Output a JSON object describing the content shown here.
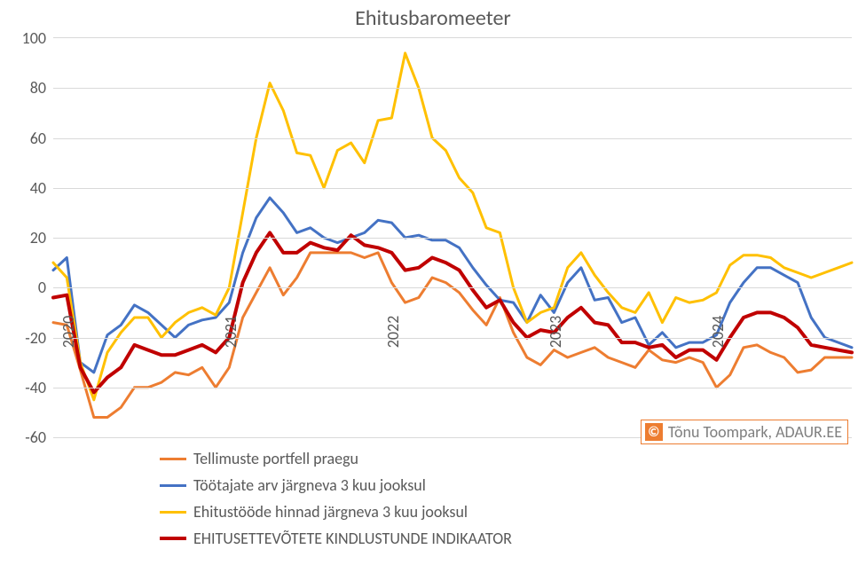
{
  "chart": {
    "type": "line",
    "title": "Ehitusbaromeeter",
    "title_fontsize": 24,
    "label_fontsize": 18,
    "background_color": "#ffffff",
    "grid_color": "#d9d9d9",
    "text_color": "#595959",
    "ylim": [
      -60,
      100
    ],
    "ytick_step": 20,
    "yticks": [
      -60,
      -40,
      -20,
      0,
      20,
      40,
      60,
      80,
      100
    ],
    "x_count": 60,
    "x_year_labels": [
      {
        "index": 0,
        "label": "2020"
      },
      {
        "index": 12,
        "label": "2021"
      },
      {
        "index": 24,
        "label": "2022"
      },
      {
        "index": 36,
        "label": "2023"
      },
      {
        "index": 48,
        "label": "2024"
      }
    ],
    "series": [
      {
        "name": "Tellimuste portfell praegu",
        "color": "#ed7d31",
        "line_width": 3,
        "values": [
          -14,
          -15,
          -33,
          -52,
          -52,
          -48,
          -40,
          -40,
          -38,
          -34,
          -35,
          -32,
          -40,
          -32,
          -12,
          -2,
          8,
          -3,
          4,
          14,
          14,
          14,
          14,
          12,
          14,
          2,
          -6,
          -4,
          4,
          2,
          -2,
          -9,
          -15,
          -4,
          -18,
          -28,
          -31,
          -25,
          -28,
          -26,
          -24,
          -28,
          -30,
          -32,
          -25,
          -29,
          -30,
          -28,
          -30,
          -40,
          -35,
          -24,
          -23,
          -26,
          -28,
          -34,
          -33,
          -28,
          -28,
          -28
        ]
      },
      {
        "name": "Töötajate arv järgneva 3 kuu jooksul",
        "color": "#4472c4",
        "line_width": 3,
        "values": [
          7,
          12,
          -30,
          -34,
          -19,
          -15,
          -7,
          -10,
          -15,
          -20,
          -15,
          -13,
          -12,
          -6,
          14,
          28,
          36,
          30,
          22,
          24,
          20,
          18,
          20,
          22,
          27,
          26,
          20,
          21,
          19,
          19,
          16,
          8,
          1,
          -5,
          -6,
          -14,
          -3,
          -10,
          2,
          8,
          -5,
          -4,
          -14,
          -12,
          -23,
          -18,
          -24,
          -22,
          -22,
          -19,
          -6,
          2,
          8,
          8,
          5,
          2,
          -12,
          -20,
          -22,
          -24
        ]
      },
      {
        "name": "Ehitustööde hinnad järgneva 3 kuu jooksul",
        "color": "#ffc000",
        "line_width": 3,
        "values": [
          10,
          4,
          -30,
          -45,
          -26,
          -18,
          -12,
          -12,
          -20,
          -14,
          -10,
          -8,
          -11,
          0,
          30,
          60,
          82,
          71,
          54,
          53,
          40,
          55,
          58,
          50,
          67,
          68,
          94,
          80,
          60,
          55,
          44,
          38,
          24,
          22,
          0,
          -14,
          -10,
          -8,
          8,
          14,
          5,
          -2,
          -8,
          -10,
          -2,
          -14,
          -4,
          -6,
          -5,
          -2,
          9,
          13,
          13,
          12,
          8,
          6,
          4,
          6,
          8,
          10
        ]
      },
      {
        "name": "EHITUSETTEVÕTETE KINDLUSTUNDE INDIKAATOR",
        "color": "#c00000",
        "line_width": 4,
        "values": [
          -4,
          -3,
          -32,
          -42,
          -36,
          -32,
          -23,
          -25,
          -27,
          -27,
          -25,
          -23,
          -26,
          -20,
          2,
          14,
          22,
          14,
          14,
          18,
          16,
          15,
          21,
          17,
          16,
          14,
          7,
          8,
          12,
          10,
          7,
          -1,
          -8,
          -5,
          -14,
          -20,
          -17,
          -18,
          -12,
          -8,
          -14,
          -15,
          -22,
          -22,
          -24,
          -23,
          -28,
          -25,
          -25,
          -29,
          -20,
          -12,
          -10,
          -10,
          -12,
          -16,
          -23,
          -24,
          -25,
          -26
        ]
      }
    ],
    "legend": {
      "position": "bottom",
      "items": [
        {
          "label": "Tellimuste portfell praegu",
          "color": "#ed7d31",
          "line_width": 3
        },
        {
          "label": "Töötajate arv järgneva 3 kuu jooksul",
          "color": "#4472c4",
          "line_width": 3
        },
        {
          "label": "Ehitustööde hinnad järgneva 3 kuu jooksul",
          "color": "#ffc000",
          "line_width": 3
        },
        {
          "label": "EHITUSETTEVÕTETE KINDLUSTUNDE INDIKAATOR",
          "color": "#c00000",
          "line_width": 4
        }
      ]
    },
    "credit": {
      "symbol": "©",
      "text": "Tõnu Toompark, ADAUR.EE",
      "border_color": "#ed7d31",
      "symbol_bg": "#ed7d31",
      "symbol_color": "#ffffff",
      "text_color": "#7f7f7f"
    }
  }
}
